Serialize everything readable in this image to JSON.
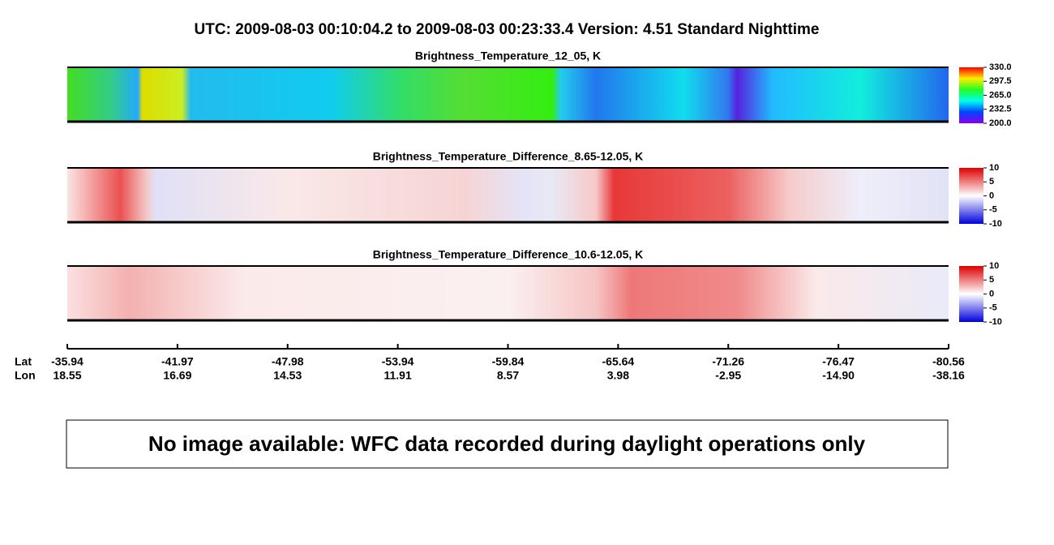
{
  "header": {
    "title": "UTC:  2009-08-03   00:10:04.2  to  2009-08-03   00:23:33.4    Version: 4.51  Standard Nighttime"
  },
  "panels": [
    {
      "title": "Brightness_Temperature_12_05, K",
      "colorbar": {
        "lim": [
          200,
          330
        ],
        "ticks": [
          {
            "value": 330,
            "label": "330.0"
          },
          297.5,
          {
            "value": 265,
            "label": "265.0"
          },
          232.5,
          {
            "value": 200,
            "label": "200.0"
          }
        ]
      }
    },
    {
      "title": "Brightness_Temperature_Difference_8.65-12.05, K",
      "colorbar": {
        "lim": [
          -10,
          10
        ],
        "ticks": [
          10,
          5,
          0,
          -5,
          -10
        ]
      }
    },
    {
      "title": "Brightness_Temperature_Difference_10.6-12.05, K",
      "colorbar": {
        "lim": [
          -10,
          10
        ],
        "ticks": [
          10,
          5,
          0,
          -5,
          -10
        ]
      }
    }
  ],
  "x_axis": {
    "row_labels": [
      "Lat",
      "Lon"
    ],
    "lat": [
      -35.94,
      -41.97,
      -47.98,
      -53.94,
      -59.84,
      -65.64,
      -71.26,
      -76.47,
      -80.56
    ],
    "lon": [
      18.55,
      16.69,
      14.53,
      11.91,
      8.57,
      3.98,
      -2.95,
      {
        "value": -14.9,
        "label": "-14.90"
      },
      -38.16
    ]
  },
  "message": "No image available: WFC data recorded during daylight operations only"
}
